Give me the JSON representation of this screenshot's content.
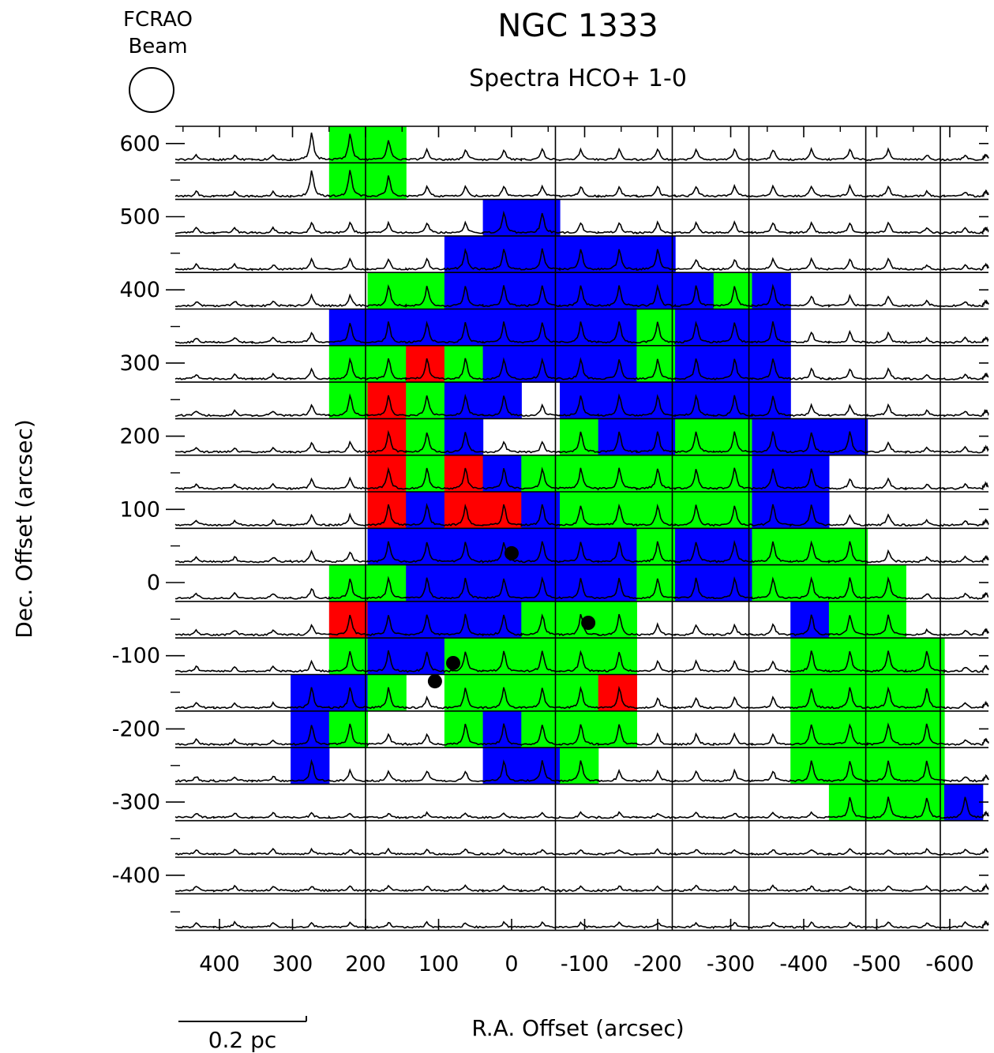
{
  "colors": {
    "blue": "#0000ff",
    "green": "#00ff00",
    "red": "#ff0000",
    "black": "#000000",
    "white": "#ffffff"
  },
  "chart_data": {
    "type": "heatmap",
    "title": "NGC 1333",
    "subtitle": "Spectra HCO+ 1-0",
    "beam_label_line1": "FCRAO",
    "beam_label_line2": "Beam",
    "xlabel": "R.A. Offset (arcsec)",
    "ylabel": "Dec. Offset (arcsec)",
    "scale_bar_label": "0.2 pc",
    "xlim": [
      450,
      -630
    ],
    "ylim": [
      -500,
      630
    ],
    "x_ticks": [
      {
        "value": 400,
        "label": "400"
      },
      {
        "value": 300,
        "label": "300"
      },
      {
        "value": 200,
        "label": "200"
      },
      {
        "value": 100,
        "label": "100"
      },
      {
        "value": 0,
        "label": "0"
      },
      {
        "value": -100,
        "label": "-100"
      },
      {
        "value": -200,
        "label": "-200"
      },
      {
        "value": -300,
        "label": "-300"
      },
      {
        "value": -400,
        "label": "-400"
      },
      {
        "value": -500,
        "label": "-500"
      },
      {
        "value": -600,
        "label": "-600"
      }
    ],
    "y_ticks": [
      {
        "value": 600,
        "label": "600"
      },
      {
        "value": 500,
        "label": "500"
      },
      {
        "value": 400,
        "label": "400"
      },
      {
        "value": 300,
        "label": "300"
      },
      {
        "value": 200,
        "label": "200"
      },
      {
        "value": 100,
        "label": "100"
      },
      {
        "value": 0,
        "label": "0"
      },
      {
        "value": -100,
        "label": "-100"
      },
      {
        "value": -200,
        "label": "-200"
      },
      {
        "value": -300,
        "label": "-300"
      },
      {
        "value": -400,
        "label": "-400"
      }
    ],
    "grid_step_arcsec": 50,
    "columns_ra": [
      425,
      375,
      325,
      275,
      225,
      175,
      125,
      75,
      25,
      -25,
      -75,
      -125,
      -175,
      -225,
      -275,
      -325,
      -375,
      -425,
      -475,
      -525,
      -575,
      -615
    ],
    "rows_dec": [
      600,
      550,
      500,
      450,
      400,
      350,
      300,
      250,
      200,
      150,
      100,
      50,
      0,
      -50,
      -100,
      -150,
      -200,
      -250,
      -300,
      -350,
      -400,
      -450
    ],
    "classification_legend": [
      "B",
      "G",
      "R"
    ],
    "grid": [
      "....GG................",
      "....GG................",
      "........BB............",
      ".......BBBBBB.........",
      ".....GGBBBBBBBGB......",
      "....BBBBBBBBGBBB......",
      "....GGRGBBBBGBBB......",
      "....GRGBB.BBBBBB......",
      ".....RGB..GBBGGBBB....",
      ".....RGRBGGGGGGBB.....",
      ".....RBRRBGGGGGBB.....",
      ".....BBBBBBBGBBGGG....",
      "....GGBBBBBBGBBGGGG...",
      "....RBBBBGGG....BGG...",
      "....GBBGGGGG....GGGG..",
      "...BBG.GGGGR....GGGG..",
      "...BG..GBGGG....GGGG..",
      "...B....BBG.....GGGG..",
      ".................GGGB.",
      "......................",
      "......................",
      "......................"
    ],
    "vertical_grid_lines_ra": [
      200,
      -60,
      -220,
      -325,
      -485,
      -587
    ],
    "protostars": [
      {
        "ra": 0,
        "dec": 40
      },
      {
        "ra": -105,
        "dec": -55
      },
      {
        "ra": 80,
        "dec": -110
      },
      {
        "ra": 105,
        "dec": -135
      }
    ],
    "bright_spectra_ra": [
      275,
      225
    ],
    "bright_spectra_dec_min": 550
  }
}
